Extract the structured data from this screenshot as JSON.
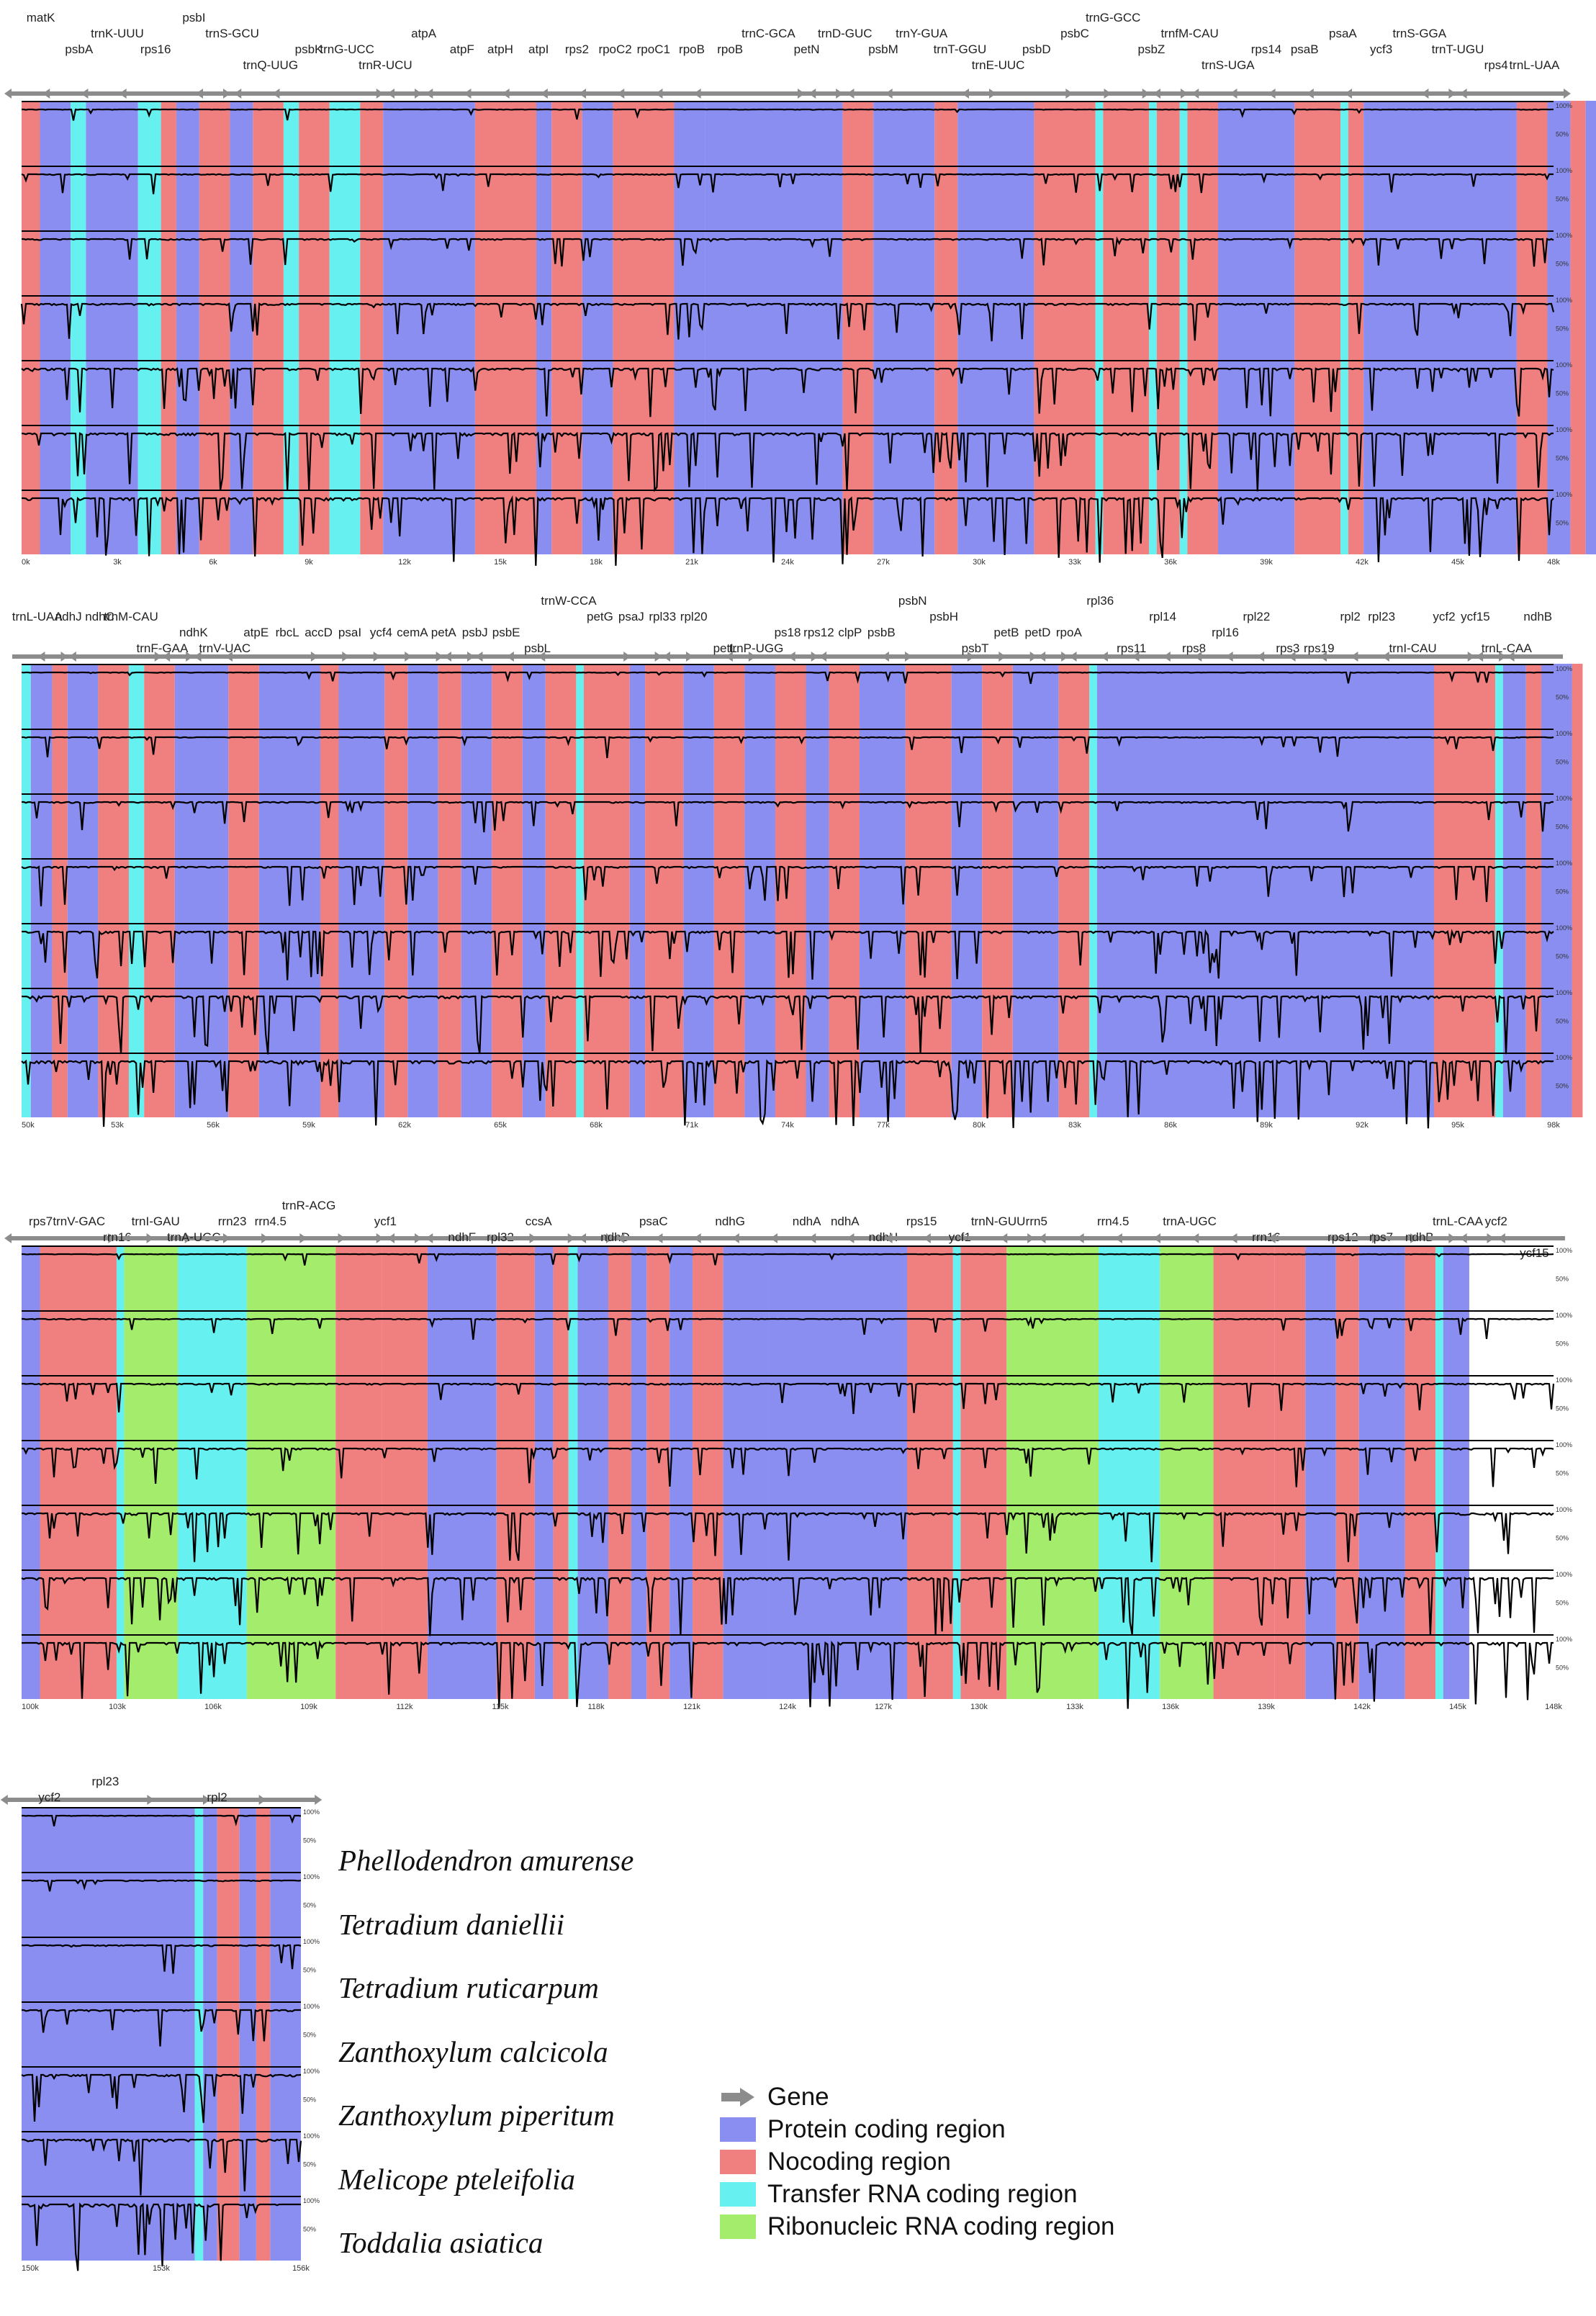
{
  "colors": {
    "protein": "#8a8ef0",
    "noncoding": "#f07f80",
    "trna": "#66f0f0",
    "rrna": "#a4ec6c",
    "gene_arrow": "#8c8c8c",
    "trace": "#000000"
  },
  "percent_labels": [
    "50%",
    "100%"
  ],
  "species": [
    "Phellodendron amurense",
    "Tetradium daniellii",
    "Tetradium ruticarpum",
    "Zanthoxylum calcicola",
    "Zanthoxylum piperitum",
    "Melicope pteleifolia",
    "Toddalia asiatica"
  ],
  "legend": [
    {
      "label": "Gene",
      "icon": "gene-arrow-icon"
    },
    {
      "label": "Protein coding region",
      "color": "#8a8ef0"
    },
    {
      "label": "Nocoding region",
      "color": "#f07f80"
    },
    {
      "label": "Transfer RNA coding region",
      "color": "#66f0f0"
    },
    {
      "label": "Ribonucleic RNA coding region",
      "color": "#a4ec6c"
    }
  ],
  "panels": [
    {
      "ticks": [
        "0k",
        "3k",
        "6k",
        "9k",
        "12k",
        "15k",
        "18k",
        "21k",
        "24k",
        "27k",
        "30k",
        "33k",
        "36k",
        "39k",
        "42k",
        "45k",
        "48k"
      ],
      "genes": [
        {
          "label": "matK",
          "dir": "L",
          "row": 0
        },
        {
          "label": "psbA",
          "dir": "L",
          "row": 2
        },
        {
          "label": "trnK-UUU",
          "dir": "L",
          "row": 1
        },
        {
          "label": "rps16",
          "dir": "L",
          "row": 2
        },
        {
          "label": "psbI",
          "dir": "R",
          "row": 0
        },
        {
          "label": "trnS-GCU",
          "dir": "L",
          "row": 1
        },
        {
          "label": "trnQ-UUG",
          "dir": "L",
          "row": 3
        },
        {
          "label": "psbK",
          "dir": "L",
          "row": 2
        },
        {
          "label": "trnG-UCC",
          "dir": "R",
          "row": 2
        },
        {
          "label": "trnR-UCU",
          "dir": "R",
          "row": 3
        },
        {
          "label": "atpA",
          "dir": "L",
          "row": 1
        },
        {
          "label": "atpF",
          "dir": "L",
          "row": 2
        },
        {
          "label": "atpH",
          "dir": "L",
          "row": 2
        },
        {
          "label": "atpI",
          "dir": "L",
          "row": 2
        },
        {
          "label": "rps2",
          "dir": "L",
          "row": 2
        },
        {
          "label": "rpoC2",
          "dir": "L",
          "row": 2
        },
        {
          "label": "rpoC1",
          "dir": "L",
          "row": 2
        },
        {
          "label": "rpoB",
          "dir": "L",
          "row": 2
        },
        {
          "label": "rpoB",
          "dir": "L",
          "row": 2
        },
        {
          "label": "trnC-GCA",
          "dir": "R",
          "row": 1
        },
        {
          "label": "petN",
          "dir": "R",
          "row": 2
        },
        {
          "label": "trnD-GUC",
          "dir": "L",
          "row": 1
        },
        {
          "label": "psbM",
          "dir": "L",
          "row": 2
        },
        {
          "label": "trnY-GUA",
          "dir": "L",
          "row": 1
        },
        {
          "label": "trnT-GGU",
          "dir": "R",
          "row": 2
        },
        {
          "label": "trnE-UUC",
          "dir": "L",
          "row": 3
        },
        {
          "label": "psbD",
          "dir": "R",
          "row": 2
        },
        {
          "label": "psbC",
          "dir": "R",
          "row": 1
        },
        {
          "label": "trnG-GCC",
          "dir": "R",
          "row": 0
        },
        {
          "label": "psbZ",
          "dir": "R",
          "row": 2
        },
        {
          "label": "trnfM-CAU",
          "dir": "L",
          "row": 1
        },
        {
          "label": "trnS-UGA",
          "dir": "L",
          "row": 3
        },
        {
          "label": "rps14",
          "dir": "L",
          "row": 2
        },
        {
          "label": "psaB",
          "dir": "L",
          "row": 2
        },
        {
          "label": "psaA",
          "dir": "L",
          "row": 1
        },
        {
          "label": "ycf3",
          "dir": "L",
          "row": 2
        },
        {
          "label": "trnS-GGA",
          "dir": "R",
          "row": 1
        },
        {
          "label": "trnT-UGU",
          "dir": "L",
          "row": 2
        },
        {
          "label": "rps4",
          "dir": "L",
          "row": 3
        },
        {
          "label": "trnL-UAA",
          "dir": "R",
          "row": 3
        }
      ]
    },
    {
      "ticks": [
        "50k",
        "53k",
        "56k",
        "59k",
        "62k",
        "65k",
        "68k",
        "71k",
        "74k",
        "77k",
        "80k",
        "83k",
        "86k",
        "89k",
        "92k",
        "95k",
        "98k"
      ],
      "genes": [
        {
          "label": "trnL-UAA",
          "dir": "R",
          "row": 1
        },
        {
          "label": "ndhJ",
          "dir": "L",
          "row": 1
        },
        {
          "label": "ndhC",
          "dir": "L",
          "row": 1
        },
        {
          "label": "trnM-CAU",
          "dir": "R",
          "row": 1
        },
        {
          "label": "trnF-GAA",
          "dir": "R",
          "row": 3
        },
        {
          "label": "ndhK",
          "dir": "L",
          "row": 2
        },
        {
          "label": "trnV-UAC",
          "dir": "L",
          "row": 3
        },
        {
          "label": "atpE",
          "dir": "L",
          "row": 2
        },
        {
          "label": "rbcL",
          "dir": "R",
          "row": 2
        },
        {
          "label": "accD",
          "dir": "R",
          "row": 2
        },
        {
          "label": "psaI",
          "dir": "R",
          "row": 2
        },
        {
          "label": "ycf4",
          "dir": "R",
          "row": 2
        },
        {
          "label": "cemA",
          "dir": "R",
          "row": 2
        },
        {
          "label": "petA",
          "dir": "R",
          "row": 2
        },
        {
          "label": "psbJ",
          "dir": "L",
          "row": 2
        },
        {
          "label": "psbE",
          "dir": "L",
          "row": 2
        },
        {
          "label": "psbL",
          "dir": "L",
          "row": 3
        },
        {
          "label": "trnW-CCA",
          "dir": "L",
          "row": 0
        },
        {
          "label": "petG",
          "dir": "R",
          "row": 1
        },
        {
          "label": "psaJ",
          "dir": "R",
          "row": 1
        },
        {
          "label": "rpl33",
          "dir": "R",
          "row": 1
        },
        {
          "label": "rpl20",
          "dir": "L",
          "row": 1
        },
        {
          "label": "petL",
          "dir": "R",
          "row": 3
        },
        {
          "label": "trnP-UGG",
          "dir": "L",
          "row": 3
        },
        {
          "label": "ps18",
          "dir": "R",
          "row": 2
        },
        {
          "label": "rps12",
          "dir": "L",
          "row": 2
        },
        {
          "label": "clpP",
          "dir": "L",
          "row": 2
        },
        {
          "label": "psbB",
          "dir": "R",
          "row": 2
        },
        {
          "label": "psbN",
          "dir": "L",
          "row": 0
        },
        {
          "label": "psbH",
          "dir": "R",
          "row": 1
        },
        {
          "label": "psbT",
          "dir": "R",
          "row": 3
        },
        {
          "label": "petB",
          "dir": "R",
          "row": 2
        },
        {
          "label": "petD",
          "dir": "R",
          "row": 2
        },
        {
          "label": "rpoA",
          "dir": "L",
          "row": 2
        },
        {
          "label": "rpl36",
          "dir": "L",
          "row": 0
        },
        {
          "label": "rps11",
          "dir": "L",
          "row": 3
        },
        {
          "label": "rpl14",
          "dir": "L",
          "row": 1
        },
        {
          "label": "rps8",
          "dir": "L",
          "row": 3
        },
        {
          "label": "rpl16",
          "dir": "L",
          "row": 2
        },
        {
          "label": "rpl22",
          "dir": "L",
          "row": 1
        },
        {
          "label": "rps3",
          "dir": "L",
          "row": 3
        },
        {
          "label": "rps19",
          "dir": "L",
          "row": 3
        },
        {
          "label": "rpl2",
          "dir": "L",
          "row": 1
        },
        {
          "label": "rpl23",
          "dir": "L",
          "row": 1
        },
        {
          "label": "trnI-CAU",
          "dir": "L",
          "row": 3
        },
        {
          "label": "ycf2",
          "dir": "R",
          "row": 1
        },
        {
          "label": "ycf15",
          "dir": "R",
          "row": 1
        },
        {
          "label": "trnL-CAA",
          "dir": "L",
          "row": 3
        },
        {
          "label": "ndhB",
          "dir": "L",
          "row": 1
        }
      ]
    },
    {
      "ticks": [
        "100k",
        "103k",
        "106k",
        "109k",
        "112k",
        "115k",
        "118k",
        "121k",
        "124k",
        "127k",
        "130k",
        "133k",
        "136k",
        "139k",
        "142k",
        "145k",
        "148k"
      ],
      "genes": [
        {
          "label": "rps7",
          "dir": "L",
          "row": 1
        },
        {
          "label": "trnV-GAC",
          "dir": "R",
          "row": 1
        },
        {
          "label": "rrn16",
          "dir": "R",
          "row": 2
        },
        {
          "label": "trnI-GAU",
          "dir": "R",
          "row": 1
        },
        {
          "label": "trnA-UGC",
          "dir": "R",
          "row": 2
        },
        {
          "label": "rrn23",
          "dir": "R",
          "row": 1
        },
        {
          "label": "rrn4.5",
          "dir": "R",
          "row": 1
        },
        {
          "label": "trnR-ACG",
          "dir": "R",
          "row": 0
        },
        {
          "label": "rrn5",
          "dir": "R",
          "row": 3
        },
        {
          "label": "ycf1",
          "dir": "R",
          "row": 1
        },
        {
          "label": "trnN-GUU",
          "dir": "L",
          "row": 3
        },
        {
          "label": "ndhF",
          "dir": "L",
          "row": 2
        },
        {
          "label": "rpl32",
          "dir": "R",
          "row": 2
        },
        {
          "label": "ccsA",
          "dir": "R",
          "row": 1
        },
        {
          "label": "trnL-UAG",
          "dir": "R",
          "row": 3
        },
        {
          "label": "ndhD",
          "dir": "L",
          "row": 2
        },
        {
          "label": "psaC",
          "dir": "L",
          "row": 1
        },
        {
          "label": "ndhE",
          "dir": "L",
          "row": 3
        },
        {
          "label": "ndhG",
          "dir": "L",
          "row": 1
        },
        {
          "label": "ndhI",
          "dir": "L",
          "row": 3
        },
        {
          "label": "ndhA",
          "dir": "L",
          "row": 1
        },
        {
          "label": "ndhA",
          "dir": "L",
          "row": 1
        },
        {
          "label": "ndhH",
          "dir": "L",
          "row": 2
        },
        {
          "label": "rps15",
          "dir": "L",
          "row": 1
        },
        {
          "label": "ycf1",
          "dir": "L",
          "row": 2
        },
        {
          "label": "trnN-GUU",
          "dir": "R",
          "row": 1
        },
        {
          "label": "rrn5",
          "dir": "L",
          "row": 1
        },
        {
          "label": "trnR-ACG",
          "dir": "L",
          "row": 3
        },
        {
          "label": "rrn4.5",
          "dir": "L",
          "row": 1
        },
        {
          "label": "rrn23",
          "dir": "L",
          "row": 3
        },
        {
          "label": "trnA-UGC",
          "dir": "L",
          "row": 1
        },
        {
          "label": "trnI-GAU",
          "dir": "L",
          "row": 3
        },
        {
          "label": "rrn16",
          "dir": "L",
          "row": 2
        },
        {
          "label": "trnV-GAC",
          "dir": "L",
          "row": 3
        },
        {
          "label": "rps12",
          "dir": "R",
          "row": 2
        },
        {
          "label": "rps7",
          "dir": "R",
          "row": 2
        },
        {
          "label": "ndhB",
          "dir": "R",
          "row": 2
        },
        {
          "label": "trnL-CAA",
          "dir": "R",
          "row": 1
        },
        {
          "label": "ycf2",
          "dir": "L",
          "row": 1
        },
        {
          "label": "ycf15",
          "dir": "L",
          "row": 3
        }
      ]
    },
    {
      "ticks": [
        "150k",
        "153k",
        "156k"
      ],
      "genes": [
        {
          "label": "ycf2",
          "dir": "L",
          "row": 1
        },
        {
          "label": "rpl23",
          "dir": "R",
          "row": 0
        },
        {
          "label": "trnI-CAU",
          "dir": "R",
          "row": 2
        },
        {
          "label": "rpl2",
          "dir": "R",
          "row": 1
        },
        {
          "label": "rps19",
          "dir": "R",
          "row": 2
        }
      ]
    }
  ]
}
